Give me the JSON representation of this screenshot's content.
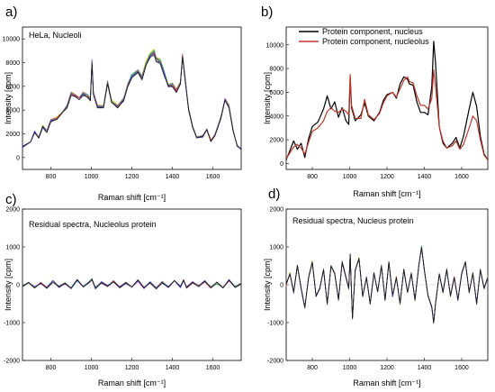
{
  "chart_data": [
    {
      "id": "a",
      "panel_label": "a)",
      "type": "line",
      "title": "HeLa, Nucleoli",
      "xlabel": "Raman shift [cm⁻¹]",
      "ylabel": "Intensity [cpm]",
      "xlim": [
        660,
        1740
      ],
      "ylim": [
        -1000,
        11000
      ],
      "xticks": [
        800,
        1000,
        1200,
        1400,
        1600
      ],
      "yticks": [
        0,
        2000,
        4000,
        6000,
        8000,
        10000
      ],
      "overlay_count": 7,
      "overlay_colors": [
        "#1a1a1a",
        "#3b3bd6",
        "#e03c3c",
        "#2ca02c",
        "#9c3fd0",
        "#1fa7c9",
        "#d4b400"
      ],
      "series": [
        {
          "x": [
            660,
            700,
            720,
            740,
            760,
            780,
            800,
            830,
            860,
            880,
            900,
            920,
            940,
            960,
            980,
            995,
            1003,
            1010,
            1030,
            1060,
            1080,
            1100,
            1130,
            1160,
            1180,
            1200,
            1230,
            1250,
            1270,
            1290,
            1310,
            1320,
            1340,
            1360,
            1380,
            1400,
            1420,
            1440,
            1450,
            1460,
            1480,
            1500,
            1520,
            1550,
            1570,
            1590,
            1610,
            1640,
            1660,
            1680,
            1700,
            1720,
            1740
          ],
          "values": [
            900,
            1300,
            2200,
            1700,
            2600,
            2200,
            3100,
            3300,
            3900,
            4300,
            5400,
            5200,
            5000,
            5400,
            5200,
            4900,
            8100,
            5400,
            4300,
            4300,
            6400,
            4700,
            4300,
            4900,
            6100,
            6900,
            7300,
            6700,
            7900,
            8600,
            8900,
            8300,
            8100,
            7100,
            6100,
            6100,
            5600,
            6300,
            8600,
            7100,
            4100,
            2600,
            1700,
            1800,
            2400,
            1400,
            1900,
            3400,
            4900,
            4300,
            2300,
            1000,
            700
          ]
        }
      ]
    },
    {
      "id": "b",
      "panel_label": "b)",
      "type": "line",
      "xlabel": "Raman shift [cm⁻¹]",
      "ylabel": "Intensity [cpm]",
      "xlim": [
        660,
        1740
      ],
      "ylim": [
        -500,
        11500
      ],
      "xticks": [
        800,
        1000,
        1200,
        1400,
        1600
      ],
      "yticks": [
        0,
        2000,
        4000,
        6000,
        8000,
        10000
      ],
      "legend_position": "top",
      "series": [
        {
          "name": "Protein component, nucleus",
          "color": "#000000",
          "x": [
            660,
            700,
            720,
            740,
            760,
            780,
            800,
            830,
            860,
            880,
            900,
            920,
            940,
            960,
            980,
            995,
            1003,
            1010,
            1030,
            1060,
            1080,
            1100,
            1130,
            1160,
            1180,
            1200,
            1230,
            1250,
            1270,
            1290,
            1310,
            1320,
            1340,
            1360,
            1380,
            1400,
            1420,
            1440,
            1450,
            1460,
            1480,
            1500,
            1520,
            1550,
            1570,
            1590,
            1610,
            1640,
            1660,
            1680,
            1700,
            1720,
            1740
          ],
          "values": [
            300,
            1900,
            1200,
            1700,
            500,
            2100,
            3100,
            3500,
            4600,
            5700,
            4600,
            5200,
            3900,
            4700,
            3600,
            3300,
            7200,
            4700,
            3600,
            4100,
            5100,
            4000,
            3600,
            4300,
            5300,
            5800,
            6000,
            5500,
            6700,
            7300,
            7100,
            6700,
            6600,
            5200,
            4300,
            4300,
            4100,
            6500,
            10300,
            8500,
            3100,
            1700,
            1300,
            1700,
            2200,
            1300,
            2300,
            4600,
            6000,
            4800,
            2300,
            800,
            300
          ]
        },
        {
          "name": "Protein component, nucleolus",
          "color": "#c0392b",
          "x": [
            660,
            700,
            720,
            740,
            760,
            780,
            800,
            830,
            860,
            880,
            900,
            920,
            940,
            960,
            980,
            995,
            1003,
            1010,
            1030,
            1060,
            1080,
            1100,
            1130,
            1160,
            1180,
            1200,
            1230,
            1250,
            1270,
            1290,
            1310,
            1320,
            1340,
            1360,
            1380,
            1400,
            1420,
            1440,
            1450,
            1460,
            1480,
            1500,
            1520,
            1550,
            1570,
            1590,
            1610,
            1640,
            1660,
            1680,
            1700,
            1720,
            1740
          ],
          "values": [
            400,
            1400,
            1600,
            1300,
            800,
            1800,
            2700,
            3000,
            3600,
            4400,
            4700,
            4400,
            4300,
            4600,
            4400,
            4100,
            7500,
            4900,
            3800,
            3800,
            5400,
            4100,
            3700,
            4200,
            5100,
            5700,
            6000,
            5600,
            6300,
            7000,
            7300,
            6900,
            6800,
            5700,
            4900,
            4900,
            4600,
            5500,
            7900,
            6500,
            3100,
            1900,
            1300,
            1500,
            1900,
            1200,
            1600,
            3000,
            4000,
            3600,
            2000,
            700,
            300
          ]
        }
      ]
    },
    {
      "id": "c",
      "panel_label": "c)",
      "type": "line",
      "title": "Residual spectra, Nucleolus protein",
      "xlabel": "Raman shift [cm⁻¹]",
      "ylabel": "Intensity [cpm]",
      "xlim": [
        660,
        1740
      ],
      "ylim": [
        -2000,
        2000
      ],
      "xticks": [
        800,
        1000,
        1200,
        1400,
        1600
      ],
      "yticks": [
        -2000,
        -1000,
        0,
        1000,
        2000
      ],
      "overlay_count": 7,
      "overlay_colors": [
        "#1a1a1a",
        "#3b3bd6",
        "#e03c3c",
        "#2ca02c",
        "#9c3fd0",
        "#1fa7c9",
        "#d4b400"
      ],
      "series": [
        {
          "x": [
            660,
            690,
            720,
            750,
            780,
            810,
            840,
            870,
            900,
            930,
            960,
            990,
            1003,
            1020,
            1050,
            1080,
            1110,
            1140,
            1170,
            1200,
            1230,
            1260,
            1290,
            1320,
            1350,
            1380,
            1410,
            1440,
            1455,
            1470,
            1500,
            1530,
            1560,
            1590,
            1620,
            1650,
            1680,
            1710,
            1740
          ],
          "values": [
            -40,
            60,
            -70,
            50,
            -80,
            90,
            -60,
            40,
            -100,
            120,
            -50,
            80,
            150,
            -90,
            60,
            -40,
            90,
            -70,
            50,
            -60,
            110,
            -80,
            60,
            -90,
            70,
            -50,
            100,
            -60,
            130,
            -80,
            60,
            -40,
            90,
            -70,
            50,
            -80,
            120,
            -60,
            30
          ]
        }
      ]
    },
    {
      "id": "d",
      "panel_label": "d)",
      "type": "line",
      "title": "Residual spectra, Nucleus protein",
      "xlabel": "Raman shift [cm⁻¹]",
      "ylabel": "Intensity [cpm]",
      "xlim": [
        660,
        1740
      ],
      "ylim": [
        -2000,
        2000
      ],
      "xticks": [
        800,
        1000,
        1200,
        1400,
        1600
      ],
      "yticks": [
        -2000,
        -1000,
        0,
        1000,
        2000
      ],
      "overlay_count": 7,
      "overlay_colors": [
        "#1a1a1a",
        "#3b3bd6",
        "#e03c3c",
        "#2ca02c",
        "#9c3fd0",
        "#1fa7c9",
        "#d4b400"
      ],
      "series": [
        {
          "x": [
            660,
            680,
            700,
            720,
            740,
            760,
            780,
            800,
            820,
            840,
            860,
            880,
            900,
            920,
            940,
            960,
            980,
            995,
            1003,
            1015,
            1030,
            1050,
            1070,
            1090,
            1110,
            1130,
            1150,
            1170,
            1190,
            1210,
            1230,
            1250,
            1270,
            1290,
            1310,
            1330,
            1350,
            1370,
            1385,
            1400,
            1420,
            1440,
            1450,
            1460,
            1480,
            1500,
            1520,
            1540,
            1560,
            1580,
            1600,
            1620,
            1640,
            1660,
            1680,
            1700,
            1720,
            1740
          ],
          "values": [
            0,
            300,
            -200,
            500,
            -100,
            -600,
            200,
            600,
            -300,
            -100,
            400,
            -500,
            500,
            300,
            -400,
            600,
            200,
            -100,
            800,
            -900,
            400,
            700,
            -300,
            200,
            -500,
            300,
            -200,
            500,
            -400,
            600,
            -300,
            200,
            -500,
            400,
            -200,
            300,
            -400,
            500,
            1000,
            400,
            -300,
            -600,
            -1000,
            -500,
            300,
            -200,
            400,
            -300,
            200,
            -400,
            300,
            600,
            -200,
            300,
            -500,
            400,
            -100,
            200
          ]
        }
      ]
    }
  ]
}
